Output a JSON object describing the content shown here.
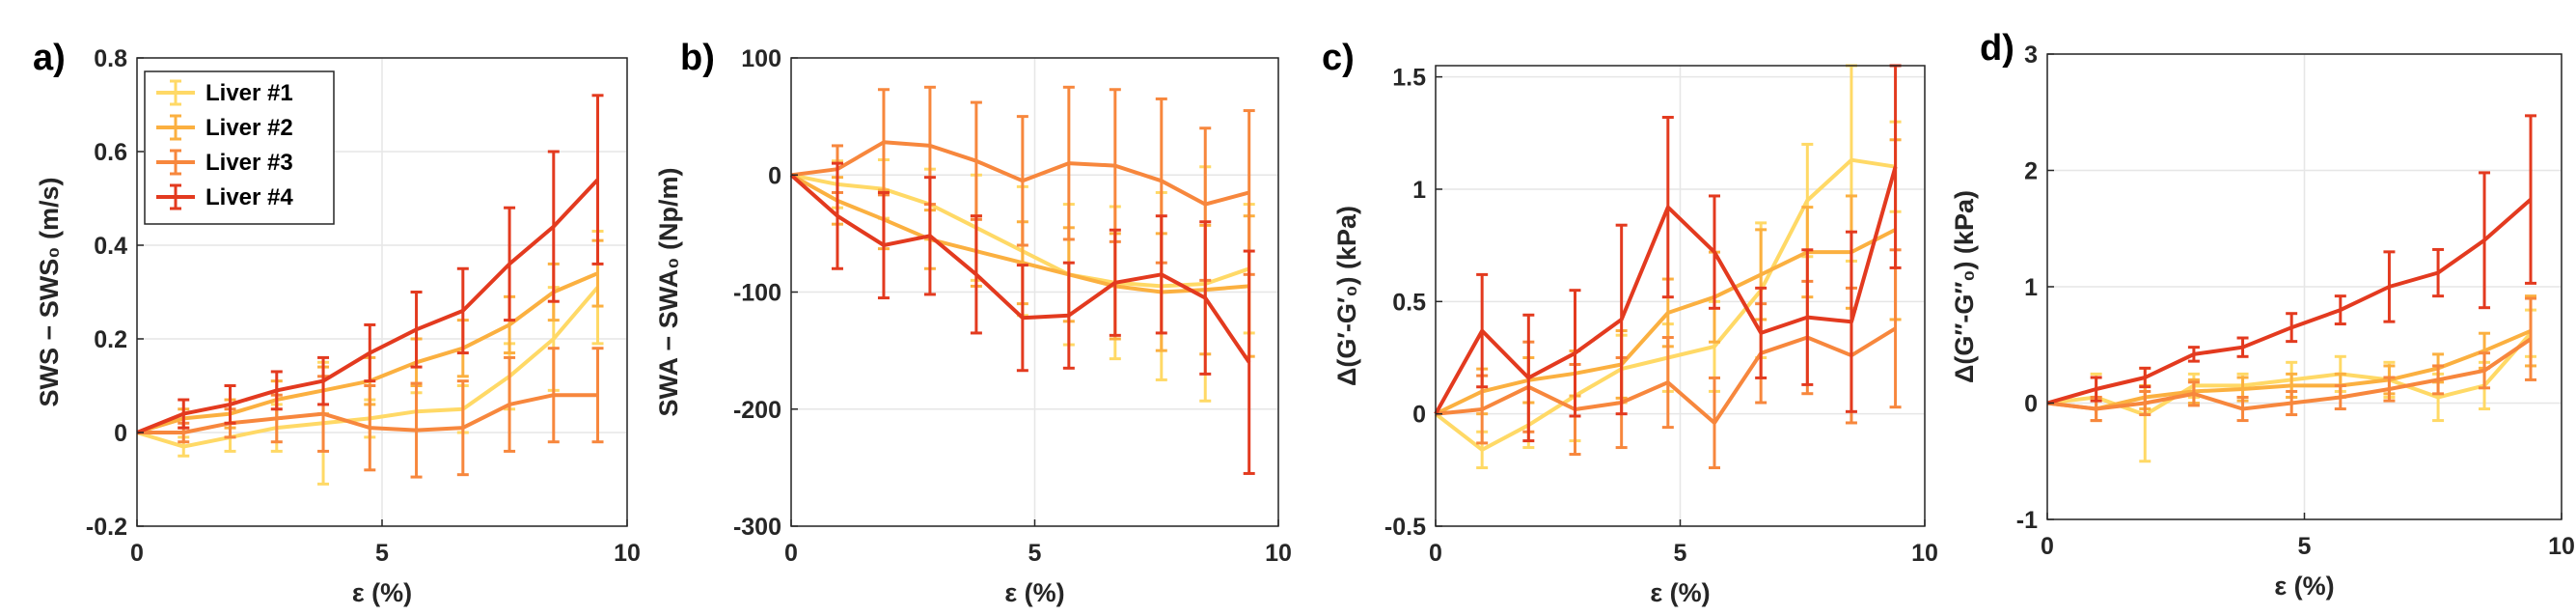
{
  "figure": {
    "legend": {
      "location": "top-left of panel a",
      "entries": [
        "Liver #1",
        "Liver #2",
        "Liver #3",
        "Liver #4"
      ]
    }
  },
  "chart_data": [
    {
      "panel": "a)",
      "type": "line",
      "xlabel": "ε (%)",
      "ylabel": "SWS − SWS₀ (m/s)",
      "xlim": [
        0,
        10
      ],
      "ylim": [
        -0.2,
        0.8
      ],
      "xticks": [
        0,
        5,
        10
      ],
      "yticks": [
        -0.2,
        0,
        0.2,
        0.4,
        0.6,
        0.8
      ],
      "xtick_labels": [
        "0",
        "5",
        "10"
      ],
      "ytick_labels": [
        "-0.2",
        "0",
        "0.2",
        "0.4",
        "0.6",
        "0.8"
      ],
      "grid": true,
      "legend": "top-left",
      "series": [
        {
          "name": "Liver #1",
          "color": "#ffd966",
          "x": [
            0,
            0.95,
            1.9,
            2.85,
            3.8,
            4.75,
            5.7,
            6.65,
            7.6,
            8.5,
            9.4
          ],
          "y": [
            0,
            -0.03,
            -0.01,
            0.01,
            0.02,
            0.03,
            0.045,
            0.05,
            0.12,
            0.2,
            0.31
          ],
          "err": [
            0,
            0.02,
            0.03,
            0.05,
            0.13,
            0.04,
            0.04,
            0.05,
            0.07,
            0.11,
            0.12
          ]
        },
        {
          "name": "Liver #2",
          "color": "#fbb040",
          "x": [
            0,
            0.95,
            1.9,
            2.85,
            3.8,
            4.75,
            5.7,
            6.65,
            7.6,
            8.5,
            9.4
          ],
          "y": [
            0,
            0.03,
            0.04,
            0.07,
            0.09,
            0.11,
            0.15,
            0.18,
            0.23,
            0.3,
            0.34
          ],
          "err": [
            0,
            0.02,
            0.03,
            0.04,
            0.05,
            0.05,
            0.05,
            0.06,
            0.06,
            0.06,
            0.07
          ]
        },
        {
          "name": "Liver #3",
          "color": "#f7873d",
          "x": [
            0,
            0.95,
            1.9,
            2.85,
            3.8,
            4.75,
            5.7,
            6.65,
            7.6,
            8.5,
            9.4
          ],
          "y": [
            0,
            0.0,
            0.02,
            0.03,
            0.04,
            0.01,
            0.005,
            0.01,
            0.06,
            0.08,
            0.08
          ],
          "err": [
            0,
            0.02,
            0.03,
            0.05,
            0.08,
            0.09,
            0.1,
            0.1,
            0.1,
            0.1,
            0.1
          ]
        },
        {
          "name": "Liver #4",
          "color": "#e33a1f",
          "x": [
            0,
            0.95,
            1.9,
            2.85,
            3.8,
            4.75,
            5.7,
            6.65,
            7.6,
            8.5,
            9.4
          ],
          "y": [
            0,
            0.04,
            0.06,
            0.09,
            0.11,
            0.17,
            0.22,
            0.26,
            0.36,
            0.44,
            0.54
          ],
          "err": [
            0,
            0.03,
            0.04,
            0.04,
            0.05,
            0.06,
            0.08,
            0.09,
            0.12,
            0.16,
            0.18
          ]
        }
      ]
    },
    {
      "panel": "b)",
      "type": "line",
      "xlabel": "ε (%)",
      "ylabel": "SWA − SWA₀ (Np/m)",
      "xlim": [
        0,
        10
      ],
      "ylim": [
        -300,
        100
      ],
      "xticks": [
        0,
        5,
        10
      ],
      "yticks": [
        -300,
        -200,
        -100,
        0,
        100
      ],
      "xtick_labels": [
        "0",
        "5",
        "10"
      ],
      "ytick_labels": [
        "-300",
        "-200",
        "-100",
        "0",
        "100"
      ],
      "grid": true,
      "series": [
        {
          "name": "Liver #1",
          "color": "#ffd966",
          "x": [
            0,
            0.95,
            1.9,
            2.85,
            3.8,
            4.75,
            5.7,
            6.65,
            7.6,
            8.5,
            9.4
          ],
          "y": [
            0,
            -8,
            -12,
            -25,
            -45,
            -65,
            -85,
            -92,
            -95,
            -93,
            -80
          ],
          "err": [
            0,
            20,
            25,
            30,
            45,
            55,
            60,
            65,
            80,
            100,
            55
          ]
        },
        {
          "name": "Liver #2",
          "color": "#fbb040",
          "x": [
            0,
            0.95,
            1.9,
            2.85,
            3.8,
            4.75,
            5.7,
            6.65,
            7.6,
            8.5,
            9.4
          ],
          "y": [
            0,
            -22,
            -38,
            -55,
            -65,
            -75,
            -85,
            -95,
            -100,
            -98,
            -95
          ],
          "err": [
            0,
            20,
            25,
            25,
            30,
            35,
            40,
            45,
            50,
            55,
            60
          ]
        },
        {
          "name": "Liver #3",
          "color": "#f7873d",
          "x": [
            0,
            0.95,
            1.9,
            2.85,
            3.8,
            4.75,
            5.7,
            6.65,
            7.6,
            8.5,
            9.4
          ],
          "y": [
            0,
            5,
            28,
            25,
            12,
            -5,
            10,
            8,
            -5,
            -25,
            -15
          ],
          "err": [
            0,
            20,
            45,
            50,
            50,
            55,
            65,
            65,
            70,
            65,
            70
          ]
        },
        {
          "name": "Liver #4",
          "color": "#e33a1f",
          "x": [
            0,
            0.95,
            1.9,
            2.85,
            3.8,
            4.75,
            5.7,
            6.65,
            7.6,
            8.5,
            9.4
          ],
          "y": [
            0,
            -35,
            -60,
            -52,
            -85,
            -122,
            -120,
            -92,
            -85,
            -105,
            -160
          ],
          "err": [
            0,
            45,
            45,
            50,
            50,
            45,
            45,
            45,
            50,
            65,
            95
          ]
        }
      ]
    },
    {
      "panel": "c)",
      "type": "line",
      "xlabel": "ε (%)",
      "ylabel": "Δ(G′-G′₀) (kPa)",
      "xlim": [
        0,
        10
      ],
      "ylim": [
        -0.5,
        1.55
      ],
      "xticks": [
        0,
        5,
        10
      ],
      "yticks": [
        -0.5,
        0,
        0.5,
        1,
        1.5
      ],
      "xtick_labels": [
        "0",
        "5",
        "10"
      ],
      "ytick_labels": [
        "-0.5",
        "0",
        "0.5",
        "1",
        "1.5"
      ],
      "grid": true,
      "series": [
        {
          "name": "Liver #1",
          "color": "#ffd966",
          "x": [
            0,
            0.95,
            1.9,
            2.85,
            3.8,
            4.75,
            5.7,
            6.65,
            7.6,
            8.5,
            9.4
          ],
          "y": [
            0,
            -0.16,
            -0.05,
            0.08,
            0.2,
            0.25,
            0.3,
            0.55,
            0.95,
            1.13,
            1.1
          ],
          "err": [
            0,
            0.08,
            0.1,
            0.2,
            0.15,
            0.15,
            0.2,
            0.3,
            0.25,
            0.45,
            0.2
          ]
        },
        {
          "name": "Liver #2",
          "color": "#fbb040",
          "x": [
            0,
            0.95,
            1.9,
            2.85,
            3.8,
            4.75,
            5.7,
            6.65,
            7.6,
            8.5,
            9.4
          ],
          "y": [
            0,
            0.1,
            0.15,
            0.18,
            0.22,
            0.45,
            0.52,
            0.62,
            0.72,
            0.72,
            0.82
          ],
          "err": [
            0,
            0.1,
            0.1,
            0.1,
            0.15,
            0.15,
            0.2,
            0.2,
            0.2,
            0.25,
            0.4
          ]
        },
        {
          "name": "Liver #3",
          "color": "#f7873d",
          "x": [
            0,
            0.95,
            1.9,
            2.85,
            3.8,
            4.75,
            5.7,
            6.65,
            7.6,
            8.5,
            9.4
          ],
          "y": [
            0,
            0.02,
            0.12,
            0.02,
            0.05,
            0.14,
            -0.04,
            0.27,
            0.34,
            0.26,
            0.38
          ],
          "err": [
            0,
            0.15,
            0.2,
            0.2,
            0.2,
            0.2,
            0.2,
            0.22,
            0.25,
            0.3,
            0.35
          ]
        },
        {
          "name": "Liver #4",
          "color": "#e33a1f",
          "x": [
            0,
            0.95,
            1.9,
            2.85,
            3.8,
            4.75,
            5.7,
            6.65,
            7.6,
            8.5,
            9.4
          ],
          "y": [
            0,
            0.37,
            0.16,
            0.27,
            0.42,
            0.92,
            0.72,
            0.36,
            0.43,
            0.41,
            1.1
          ],
          "err": [
            0,
            0.25,
            0.28,
            0.28,
            0.42,
            0.4,
            0.25,
            0.2,
            0.3,
            0.4,
            0.45
          ]
        }
      ]
    },
    {
      "panel": "d)",
      "type": "line",
      "xlabel": "ε (%)",
      "ylabel": "Δ(G″-G″₀) (kPa)",
      "xlim": [
        0,
        10
      ],
      "ylim": [
        -1,
        3
      ],
      "xticks": [
        0,
        5,
        10
      ],
      "yticks": [
        -1,
        0,
        1,
        2,
        3
      ],
      "xtick_labels": [
        "0",
        "5",
        "10"
      ],
      "ytick_labels": [
        "-1",
        "0",
        "1",
        "2",
        "3"
      ],
      "grid": true,
      "series": [
        {
          "name": "Liver #1",
          "color": "#ffd966",
          "x": [
            0,
            0.95,
            1.9,
            2.85,
            3.8,
            4.75,
            5.7,
            6.65,
            7.6,
            8.5,
            9.4
          ],
          "y": [
            0,
            0.05,
            -0.1,
            0.15,
            0.15,
            0.2,
            0.25,
            0.2,
            0.05,
            0.15,
            0.6
          ],
          "err": [
            0,
            0.2,
            0.4,
            0.1,
            0.1,
            0.15,
            0.15,
            0.15,
            0.2,
            0.2,
            0.2
          ]
        },
        {
          "name": "Liver #2",
          "color": "#fbb040",
          "x": [
            0,
            0.95,
            1.9,
            2.85,
            3.8,
            4.75,
            5.7,
            6.65,
            7.6,
            8.5,
            9.4
          ],
          "y": [
            0,
            -0.05,
            0.05,
            0.1,
            0.12,
            0.15,
            0.15,
            0.2,
            0.3,
            0.45,
            0.62
          ],
          "err": [
            0,
            0.1,
            0.1,
            0.1,
            0.1,
            0.1,
            0.1,
            0.12,
            0.12,
            0.15,
            0.3
          ]
        },
        {
          "name": "Liver #3",
          "color": "#f7873d",
          "x": [
            0,
            0.95,
            1.9,
            2.85,
            3.8,
            4.75,
            5.7,
            6.65,
            7.6,
            8.5,
            9.4
          ],
          "y": [
            0,
            -0.05,
            0.0,
            0.08,
            -0.05,
            0.0,
            0.05,
            0.12,
            0.2,
            0.28,
            0.55
          ],
          "err": [
            0,
            0.1,
            0.1,
            0.1,
            0.1,
            0.1,
            0.1,
            0.1,
            0.12,
            0.15,
            0.35
          ]
        },
        {
          "name": "Liver #4",
          "color": "#e33a1f",
          "x": [
            0,
            0.95,
            1.9,
            2.85,
            3.8,
            4.75,
            5.7,
            6.65,
            7.6,
            8.5,
            9.4
          ],
          "y": [
            0,
            0.12,
            0.22,
            0.42,
            0.48,
            0.65,
            0.8,
            1.0,
            1.12,
            1.4,
            1.75
          ],
          "err": [
            0,
            0.1,
            0.08,
            0.06,
            0.08,
            0.12,
            0.12,
            0.3,
            0.2,
            0.58,
            0.72
          ]
        }
      ]
    }
  ]
}
